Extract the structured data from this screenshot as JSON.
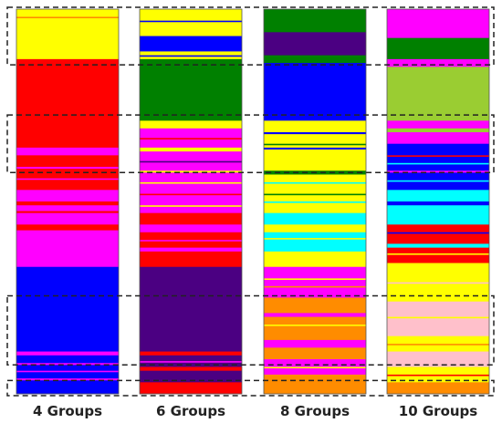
{
  "chart_data": {
    "type": "bar",
    "categories": [
      "4 Groups",
      "6 Groups",
      "8 Groups",
      "10 Groups"
    ],
    "colors": {
      "yellow": "#FFFF00",
      "red": "#FF0000",
      "magenta": "#FF00FF",
      "blue": "#0000FF",
      "green": "#008000",
      "indigo": "#4B0082",
      "cyan": "#00FFFF",
      "orange": "#FF8C00",
      "pink": "#FFC0CB",
      "yellowgreen": "#9ACD32"
    },
    "columns": [
      {
        "label": "4 Groups",
        "segments": [
          [
            "yellow",
            0,
            0.13
          ],
          [
            "red",
            0.13,
            0.36
          ],
          [
            "magenta",
            0.36,
            0.38
          ],
          [
            "red",
            0.38,
            0.41
          ],
          [
            "magenta",
            0.41,
            0.415
          ],
          [
            "red",
            0.415,
            0.47
          ],
          [
            "magenta",
            0.47,
            0.5
          ],
          [
            "red",
            0.5,
            0.51
          ],
          [
            "magenta",
            0.51,
            0.525
          ],
          [
            "red",
            0.525,
            0.53
          ],
          [
            "magenta",
            0.53,
            0.56
          ],
          [
            "red",
            0.56,
            0.575
          ],
          [
            "magenta",
            0.575,
            0.67
          ],
          [
            "blue",
            0.67,
            0.89
          ],
          [
            "magenta",
            0.89,
            0.9
          ],
          [
            "blue",
            0.9,
            0.92
          ],
          [
            "magenta",
            0.92,
            0.925
          ],
          [
            "blue",
            0.925,
            0.96
          ],
          [
            "magenta",
            0.96,
            0.965
          ],
          [
            "blue",
            0.965,
            1.0
          ]
        ]
      },
      {
        "label": "6 Groups",
        "segments": [
          [
            "yellow",
            0,
            0.07
          ],
          [
            "blue",
            0.07,
            0.11
          ],
          [
            "yellow",
            0.11,
            0.13
          ],
          [
            "green",
            0.13,
            0.29
          ],
          [
            "yellow",
            0.29,
            0.31
          ],
          [
            "magenta",
            0.31,
            0.36
          ],
          [
            "yellow",
            0.36,
            0.37
          ],
          [
            "magenta",
            0.37,
            0.42
          ],
          [
            "yellow",
            0.42,
            0.425
          ],
          [
            "magenta",
            0.425,
            0.53
          ],
          [
            "red",
            0.53,
            0.56
          ],
          [
            "magenta",
            0.56,
            0.58
          ],
          [
            "red",
            0.58,
            0.62
          ],
          [
            "magenta",
            0.62,
            0.63
          ],
          [
            "red",
            0.63,
            0.67
          ],
          [
            "indigo",
            0.67,
            0.89
          ],
          [
            "red",
            0.89,
            0.9
          ],
          [
            "indigo",
            0.9,
            0.93
          ],
          [
            "red",
            0.93,
            0.94
          ],
          [
            "indigo",
            0.94,
            0.97
          ],
          [
            "red",
            0.97,
            1.0
          ]
        ]
      },
      {
        "label": "8 Groups",
        "segments": [
          [
            "green",
            0,
            0.06
          ],
          [
            "indigo",
            0.06,
            0.12
          ],
          [
            "green",
            0.12,
            0.14
          ],
          [
            "blue",
            0.14,
            0.29
          ],
          [
            "yellow",
            0.29,
            0.32
          ],
          [
            "blue",
            0.32,
            0.325
          ],
          [
            "yellow",
            0.325,
            0.36
          ],
          [
            "blue",
            0.36,
            0.365
          ],
          [
            "yellow",
            0.365,
            0.42
          ],
          [
            "green",
            0.42,
            0.43
          ],
          [
            "yellow",
            0.43,
            0.53
          ],
          [
            "cyan",
            0.53,
            0.56
          ],
          [
            "yellow",
            0.56,
            0.58
          ],
          [
            "cyan",
            0.58,
            0.63
          ],
          [
            "yellow",
            0.63,
            0.67
          ],
          [
            "magenta",
            0.67,
            0.75
          ],
          [
            "orange",
            0.75,
            0.79
          ],
          [
            "magenta",
            0.79,
            0.8
          ],
          [
            "orange",
            0.8,
            0.86
          ],
          [
            "magenta",
            0.86,
            0.88
          ],
          [
            "orange",
            0.88,
            0.91
          ],
          [
            "magenta",
            0.91,
            0.95
          ],
          [
            "orange",
            0.95,
            1.0
          ]
        ]
      },
      {
        "label": "10 Groups",
        "segments": [
          [
            "magenta",
            0,
            0.075
          ],
          [
            "green",
            0.075,
            0.13
          ],
          [
            "magenta",
            0.13,
            0.15
          ],
          [
            "yellowgreen",
            0.15,
            0.29
          ],
          [
            "magenta",
            0.29,
            0.31
          ],
          [
            "yellowgreen",
            0.31,
            0.32
          ],
          [
            "magenta",
            0.32,
            0.35
          ],
          [
            "blue",
            0.35,
            0.42
          ],
          [
            "magenta",
            0.42,
            0.425
          ],
          [
            "blue",
            0.425,
            0.47
          ],
          [
            "cyan",
            0.47,
            0.5
          ],
          [
            "blue",
            0.5,
            0.51
          ],
          [
            "cyan",
            0.51,
            0.56
          ],
          [
            "red",
            0.56,
            0.61
          ],
          [
            "cyan",
            0.61,
            0.62
          ],
          [
            "red",
            0.62,
            0.66
          ],
          [
            "yellow",
            0.66,
            0.76
          ],
          [
            "pink",
            0.76,
            0.85
          ],
          [
            "yellow",
            0.85,
            0.89
          ],
          [
            "pink",
            0.89,
            0.93
          ],
          [
            "yellow",
            0.93,
            0.97
          ],
          [
            "orange",
            0.97,
            1.0
          ]
        ]
      }
    ],
    "stripes": [
      {
        "column": 0,
        "at": 0.02,
        "color": "orange"
      },
      {
        "column": 0,
        "at": 0.37,
        "color": "magenta"
      },
      {
        "column": 0,
        "at": 0.44,
        "color": "magenta"
      },
      {
        "column": 0,
        "at": 0.57,
        "color": "red"
      },
      {
        "column": 0,
        "at": 0.94,
        "color": "magenta"
      },
      {
        "column": 1,
        "at": 0.03,
        "color": "blue"
      },
      {
        "column": 1,
        "at": 0.12,
        "color": "blue"
      },
      {
        "column": 1,
        "at": 0.335,
        "color": "red"
      },
      {
        "column": 1,
        "at": 0.395,
        "color": "indigo"
      },
      {
        "column": 1,
        "at": 0.45,
        "color": "yellow"
      },
      {
        "column": 1,
        "at": 0.48,
        "color": "red"
      },
      {
        "column": 1,
        "at": 0.51,
        "color": "yellow"
      },
      {
        "column": 1,
        "at": 0.6,
        "color": "magenta"
      },
      {
        "column": 1,
        "at": 0.915,
        "color": "magenta"
      },
      {
        "column": 2,
        "at": 0.35,
        "color": "green"
      },
      {
        "column": 2,
        "at": 0.45,
        "color": "cyan"
      },
      {
        "column": 2,
        "at": 0.48,
        "color": "green"
      },
      {
        "column": 2,
        "at": 0.5,
        "color": "cyan"
      },
      {
        "column": 2,
        "at": 0.595,
        "color": "yellow"
      },
      {
        "column": 2,
        "at": 0.7,
        "color": "yellow"
      },
      {
        "column": 2,
        "at": 0.72,
        "color": "orange"
      },
      {
        "column": 2,
        "at": 0.82,
        "color": "yellow"
      },
      {
        "column": 2,
        "at": 0.93,
        "color": "yellow"
      },
      {
        "column": 3,
        "at": 0.38,
        "color": "red"
      },
      {
        "column": 3,
        "at": 0.4,
        "color": "cyan"
      },
      {
        "column": 3,
        "at": 0.445,
        "color": "cyan"
      },
      {
        "column": 3,
        "at": 0.58,
        "color": "blue"
      },
      {
        "column": 3,
        "at": 0.635,
        "color": "yellow"
      },
      {
        "column": 3,
        "at": 0.71,
        "color": "pink"
      },
      {
        "column": 3,
        "at": 0.8,
        "color": "yellow"
      },
      {
        "column": 3,
        "at": 0.87,
        "color": "orange"
      },
      {
        "column": 3,
        "at": 0.95,
        "color": "red"
      }
    ],
    "highlight_bands": [
      [
        0.0,
        0.14
      ],
      [
        0.28,
        0.42
      ],
      [
        0.75,
        0.92
      ],
      [
        0.97,
        1.0
      ]
    ]
  }
}
